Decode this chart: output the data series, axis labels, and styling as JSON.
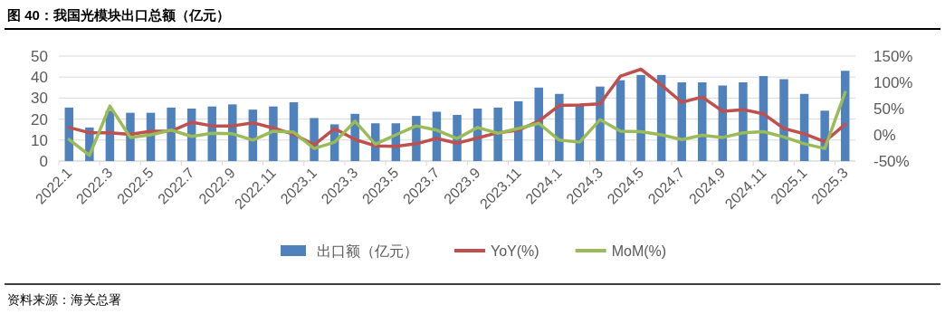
{
  "chart_data": {
    "type": "bar",
    "title": "图 40：我国光模块出口总额（亿元）",
    "annotations": [
      "资料来源：海关总署"
    ],
    "categories": [
      "2022.1",
      null,
      "2022.3",
      null,
      "2022.5",
      null,
      "2022.7",
      null,
      "2022.9",
      null,
      "2022.11",
      null,
      "2023.1",
      null,
      "2023.3",
      null,
      "2023.5",
      null,
      "2023.7",
      null,
      "2023.9",
      null,
      "2023.11",
      null,
      "2024.1",
      null,
      "2024.3",
      null,
      "2024.5",
      null,
      "2024.7",
      null,
      "2024.9",
      null,
      "2024.11",
      null,
      "2025.1",
      null,
      "2025.3"
    ],
    "series": [
      {
        "name": "出口额（亿元）",
        "color": "#4f81bd",
        "values": [
          25.5,
          16,
          24,
          23,
          23,
          25.5,
          25,
          26,
          27,
          24.5,
          26,
          28,
          20.5,
          17.5,
          22.5,
          18,
          18,
          21.5,
          23.5,
          22,
          25,
          25.5,
          28.5,
          35,
          32,
          27,
          35.5,
          38.5,
          41,
          41,
          37.5,
          37.5,
          36,
          37.5,
          40.5,
          39,
          32,
          24,
          43
        ]
      },
      {
        "name": "YoY(%)",
        "type": "line",
        "axis": "y2",
        "color": "#c0504d",
        "values": [
          14,
          4,
          4,
          1,
          7,
          7,
          24,
          17,
          17,
          23,
          13,
          1,
          -19,
          12,
          -9,
          -21,
          -22,
          -17,
          -7,
          -16,
          -6,
          4,
          9,
          26,
          56,
          57,
          59,
          112,
          125,
          95,
          62,
          72,
          45,
          48,
          40,
          12,
          2,
          -13,
          20
        ]
      },
      {
        "name": "MoM(%)",
        "type": "line",
        "axis": "y2",
        "color": "#9bbb59",
        "values": [
          -9,
          -39,
          55,
          -5,
          0,
          9,
          -3,
          3,
          2,
          -10,
          7,
          5,
          -26,
          -14,
          26,
          -18,
          0,
          17,
          9,
          -7,
          14,
          3,
          12,
          22,
          -10,
          -14,
          29,
          7,
          6,
          0,
          -9,
          -1,
          -5,
          4,
          6,
          -4,
          -17,
          -26,
          81
        ]
      }
    ],
    "ylim": [
      0,
      50
    ],
    "yticks": [
      0,
      10,
      20,
      30,
      40,
      50
    ],
    "y2lim": [
      -50,
      150
    ],
    "y2ticks": [
      {
        "value": -50,
        "label": "-50%"
      },
      {
        "value": 0,
        "label": "0%"
      },
      {
        "value": 50,
        "label": "50%"
      },
      {
        "value": 100,
        "label": "100%"
      },
      {
        "value": 150,
        "label": "150%"
      }
    ],
    "grid": "y",
    "legend": "bottom"
  }
}
